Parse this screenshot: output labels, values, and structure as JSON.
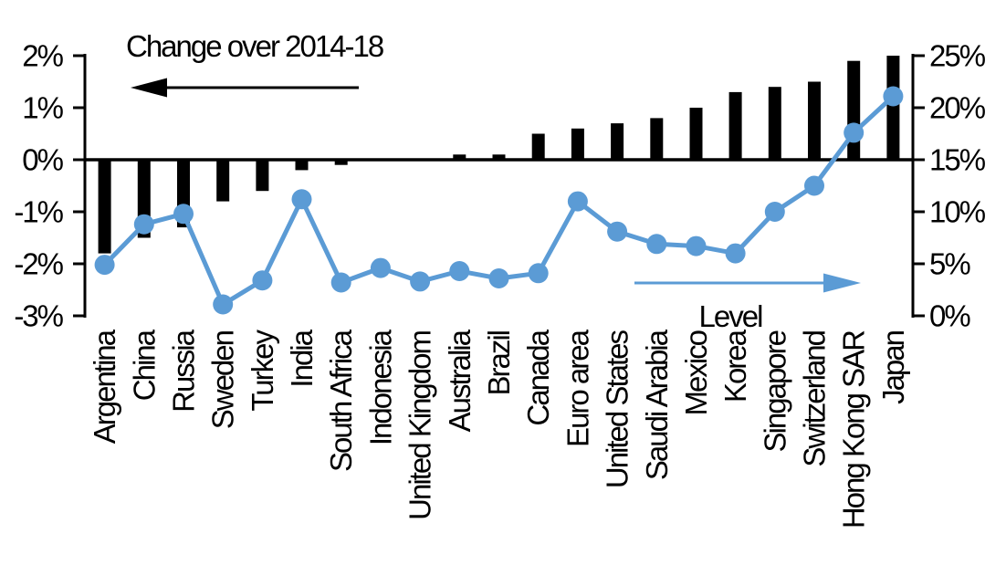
{
  "chart_data": {
    "type": "combo-bar-line",
    "categories": [
      "Argentina",
      "China",
      "Russia",
      "Sweden",
      "Turkey",
      "India",
      "South Africa",
      "Indonesia",
      "United Kingdom",
      "Australia",
      "Brazil",
      "Canada",
      "Euro area",
      "United States",
      "Saudi Arabia",
      "Mexico",
      "Korea",
      "Singapore",
      "Switzerland",
      "Hong Kong SAR",
      "Japan"
    ],
    "series": [
      {
        "name": "Change over 2014-18",
        "type": "bar",
        "axis": "left",
        "color": "#000000",
        "values": [
          -1.8,
          -1.5,
          -1.3,
          -0.8,
          -0.6,
          -0.2,
          -0.1,
          0,
          0,
          0.1,
          0.1,
          0.5,
          0.6,
          0.7,
          0.8,
          1.0,
          1.3,
          1.4,
          1.5,
          1.9,
          2.0
        ]
      },
      {
        "name": "Level",
        "type": "line",
        "axis": "right",
        "color": "#5b9bd5",
        "values": [
          4.9,
          8.8,
          9.8,
          1.1,
          3.4,
          11.2,
          3.2,
          4.6,
          3.3,
          4.3,
          3.6,
          4.1,
          11.0,
          8.1,
          6.9,
          6.7,
          6.0,
          10.0,
          12.5,
          17.6,
          21.1
        ]
      }
    ],
    "left_axis": {
      "tick_labels": [
        "2%",
        "1%",
        "0%",
        "-1%",
        "-2%",
        "-3%"
      ],
      "max": 2,
      "min": -3,
      "unit": "%"
    },
    "right_axis": {
      "tick_labels": [
        "25%",
        "20%",
        "15%",
        "10%",
        "5%",
        "0%"
      ],
      "max": 25,
      "min": 0,
      "unit": "%"
    },
    "annotations": {
      "bar_label": "Change over 2014-18",
      "bar_arrow_direction": "left",
      "line_label": "Level",
      "line_arrow_direction": "right"
    },
    "layout_hints": {
      "grid": false,
      "legend": "annotated-arrows",
      "zero_line_at_left_0_right_15": true
    }
  }
}
